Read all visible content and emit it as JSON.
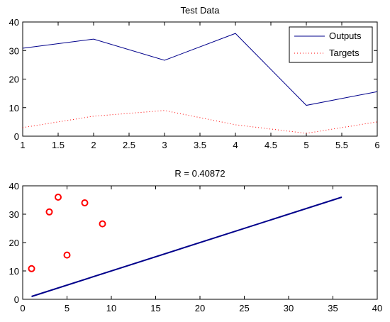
{
  "chart_data": [
    {
      "type": "line",
      "title": "Test Data",
      "xlabel": "",
      "ylabel": "",
      "xlim": [
        1,
        6
      ],
      "ylim": [
        0,
        40
      ],
      "xticks": [
        1,
        1.5,
        2,
        2.5,
        3,
        3.5,
        4,
        4.5,
        5,
        5.5,
        6
      ],
      "yticks": [
        0,
        10,
        20,
        30,
        40
      ],
      "grid": false,
      "legend_position": "top-right",
      "x": [
        1,
        2,
        3,
        4,
        5,
        6
      ],
      "series": [
        {
          "name": "Outputs",
          "values": [
            30.8,
            34.0,
            26.6,
            36.0,
            10.8,
            15.6
          ],
          "color": "#00008B",
          "style": "solid"
        },
        {
          "name": "Targets",
          "values": [
            3.0,
            7.0,
            9.0,
            4.0,
            1.0,
            5.0
          ],
          "color": "#FF0000",
          "style": "dotted"
        }
      ]
    },
    {
      "type": "scatter",
      "title": "R = 0.40872",
      "xlabel": "",
      "ylabel": "",
      "xlim": [
        0,
        40
      ],
      "ylim": [
        0,
        40
      ],
      "xticks": [
        0,
        5,
        10,
        15,
        20,
        25,
        30,
        35,
        40
      ],
      "yticks": [
        0,
        10,
        20,
        30,
        40
      ],
      "grid": false,
      "points": {
        "x": [
          1,
          3,
          4,
          5,
          7,
          9
        ],
        "y": [
          10.8,
          30.8,
          36.0,
          15.6,
          34.0,
          26.6
        ],
        "color": "#FF0000",
        "marker": "circle"
      },
      "fit_line": {
        "x": [
          1,
          36
        ],
        "y": [
          1,
          36
        ],
        "color": "#00008B"
      }
    }
  ]
}
